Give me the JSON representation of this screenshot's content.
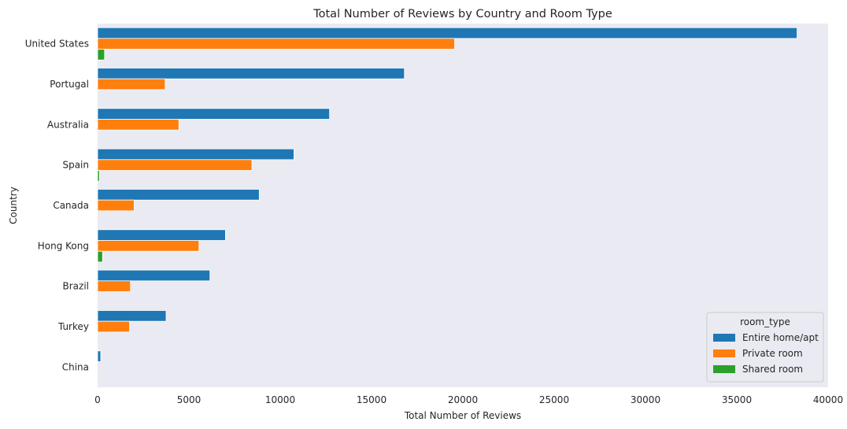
{
  "chart_data": {
    "type": "bar",
    "orientation": "horizontal",
    "title": "Total Number of Reviews by Country and Room Type",
    "xlabel": "Total Number of Reviews",
    "ylabel": "Country",
    "xlim": [
      0,
      40000
    ],
    "xticks": [
      0,
      5000,
      10000,
      15000,
      20000,
      25000,
      30000,
      35000,
      40000
    ],
    "grid": false,
    "background": "#eaeaf2",
    "categories": [
      "United States",
      "Portugal",
      "Australia",
      "Spain",
      "Canada",
      "Hong Kong",
      "Brazil",
      "Turkey",
      "China"
    ],
    "series": [
      {
        "name": "Entire home/apt",
        "color": "#1f77b4",
        "values": [
          38300,
          16800,
          12700,
          10750,
          8850,
          7000,
          6150,
          3750,
          170
        ]
      },
      {
        "name": "Private room",
        "color": "#ff7f0e",
        "values": [
          19550,
          3700,
          4450,
          8450,
          2000,
          5550,
          1800,
          1750,
          0
        ]
      },
      {
        "name": "Shared room",
        "color": "#2ca02c",
        "values": [
          380,
          0,
          0,
          100,
          0,
          270,
          0,
          0,
          0
        ]
      }
    ],
    "legend": {
      "title": "room_type",
      "position": "lower-right"
    }
  }
}
